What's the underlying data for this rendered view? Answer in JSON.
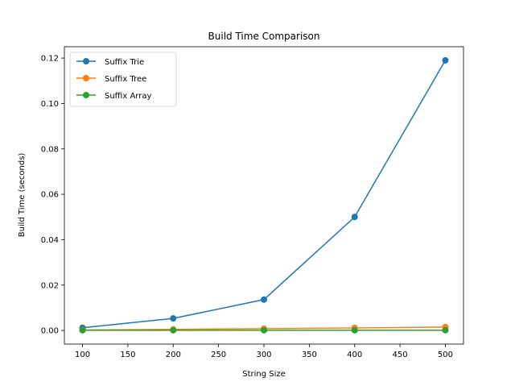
{
  "chart_data": {
    "type": "line",
    "title": "Build Time Comparison",
    "xlabel": "String Size",
    "ylabel": "Build Time (seconds)",
    "x": [
      100,
      200,
      300,
      400,
      500
    ],
    "xlim": [
      80,
      520
    ],
    "ylim": [
      -0.006,
      0.125
    ],
    "xticks": [
      100,
      150,
      200,
      250,
      300,
      350,
      400,
      450,
      500
    ],
    "yticks": [
      0.0,
      0.02,
      0.04,
      0.06,
      0.08,
      0.1,
      0.12
    ],
    "ytick_labels": [
      "0.00",
      "0.02",
      "0.04",
      "0.06",
      "0.08",
      "0.10",
      "0.12"
    ],
    "grid": false,
    "legend_position": "upper-left",
    "series": [
      {
        "name": "Suffix Trie",
        "color": "#1f77b4",
        "values": [
          0.0012,
          0.0053,
          0.0136,
          0.05,
          0.119
        ]
      },
      {
        "name": "Suffix Tree",
        "color": "#ff7f0e",
        "values": [
          0.0002,
          0.0005,
          0.0008,
          0.0011,
          0.0015
        ]
      },
      {
        "name": "Suffix Array",
        "color": "#2ca02c",
        "values": [
          0.0001,
          0.0001,
          0.0001,
          0.0001,
          0.0001
        ]
      }
    ]
  }
}
